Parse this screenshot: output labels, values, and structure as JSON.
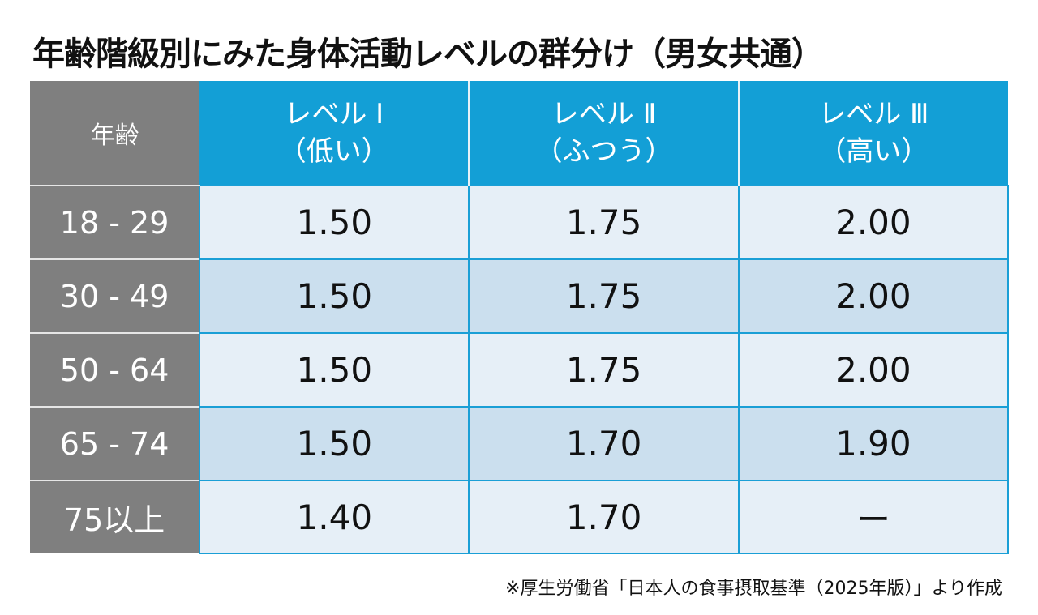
{
  "title": "年齢階級別にみた身体活動レベルの群分け（男女共通）",
  "table": {
    "headers": {
      "age": "年齢",
      "levels": [
        {
          "name": "レベル Ⅰ",
          "desc": "（低い）"
        },
        {
          "name": "レベル Ⅱ",
          "desc": "（ふつう）"
        },
        {
          "name": "レベル Ⅲ",
          "desc": "（高い）"
        }
      ]
    },
    "rows": [
      {
        "age": "18 - 29",
        "values": [
          "1.50",
          "1.75",
          "2.00"
        ]
      },
      {
        "age": "30 - 49",
        "values": [
          "1.50",
          "1.75",
          "2.00"
        ]
      },
      {
        "age": "50 - 64",
        "values": [
          "1.50",
          "1.75",
          "2.00"
        ]
      },
      {
        "age": "65 - 74",
        "values": [
          "1.50",
          "1.70",
          "1.90"
        ]
      },
      {
        "age": "75以上",
        "values": [
          "1.40",
          "1.70",
          "ー"
        ]
      }
    ]
  },
  "footnote": "※厚生労働省「日本人の食事摂取基準（2025年版）」より作成",
  "colors": {
    "header_blue": "#139fd6",
    "age_gray": "#7f7f7f",
    "row_light": "#e6eff7",
    "row_dark": "#cbdfee"
  }
}
